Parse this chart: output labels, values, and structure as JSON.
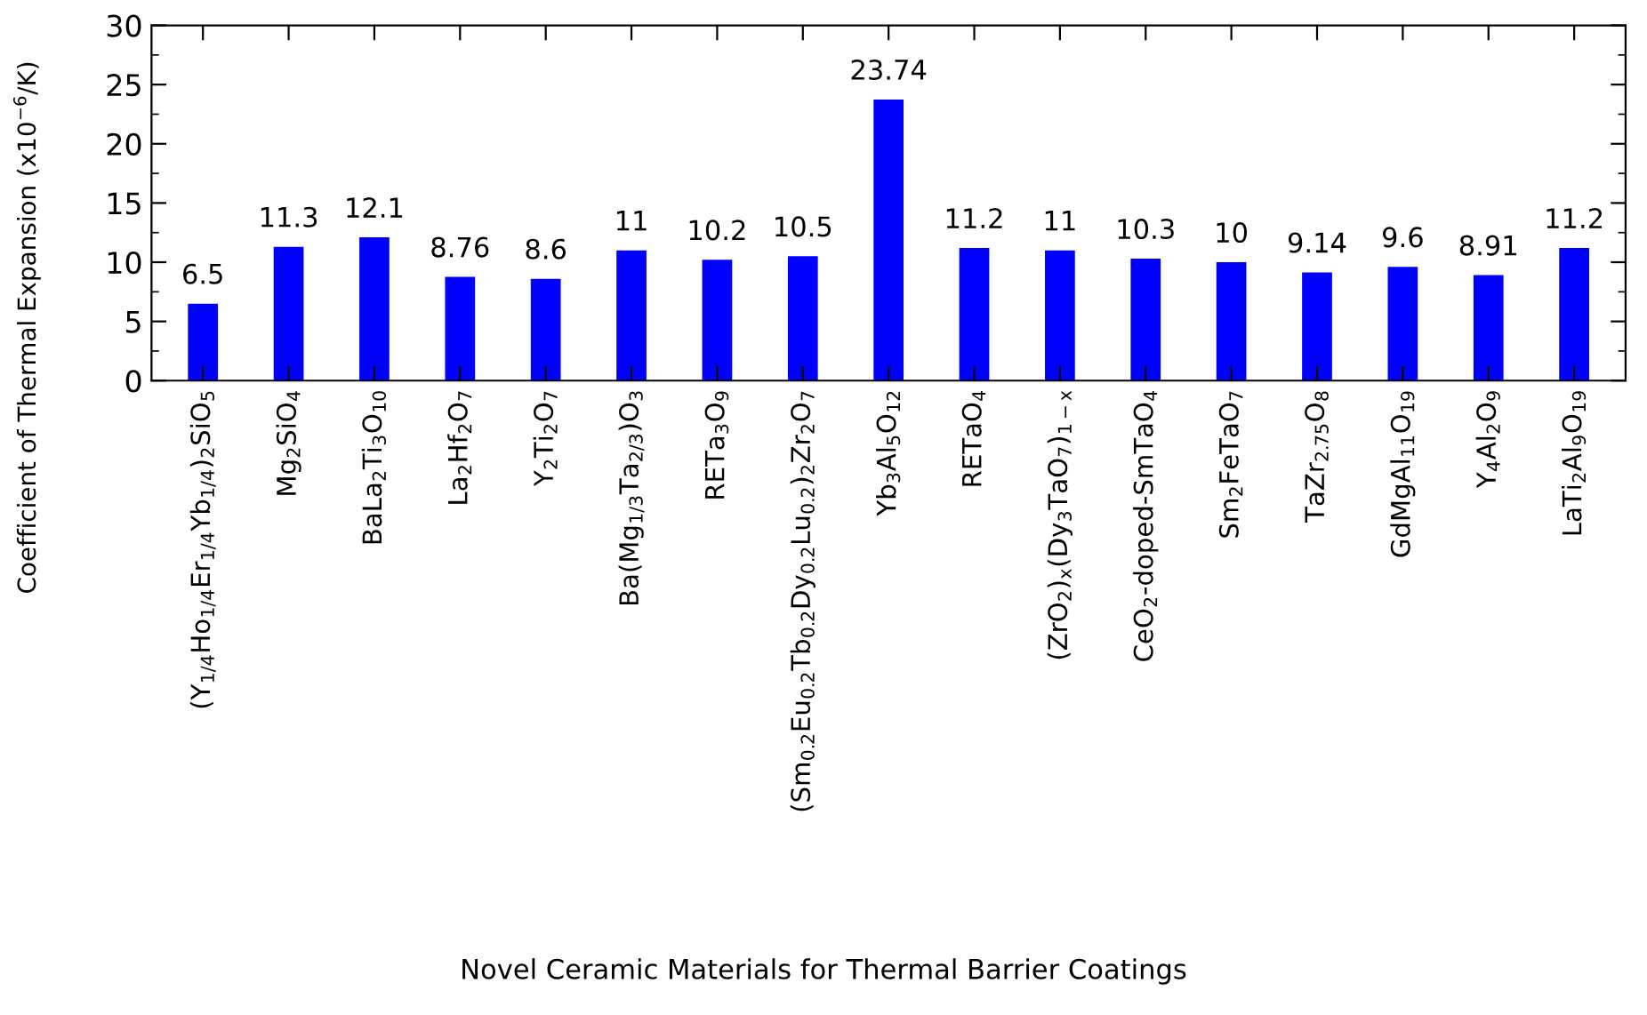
{
  "chart_data": {
    "type": "bar",
    "annotations": [
      "Novel Ceramic Materials for Thermal Barrier Coatings"
    ],
    "ylabel": "Coefficient of Thermal Expansion (x10$^{−6}$/K)",
    "categories": [
      "(Y$_{1/4}$Ho$_{1/4}$Er$_{1/4}$Yb$_{1/4}$)$_{2}$SiO$_{5}$",
      "Mg$_{2}$SiO$_{4}$",
      "BaLa$_{2}$Ti$_{3}$O$_{10}$",
      "La$_{2}$Hf$_{2}$O$_{7}$",
      "Y$_{2}$Ti$_{2}$O$_{7}$",
      "Ba(Mg$_{1/3}$Ta$_{2/3}$)O$_{3}$",
      "RETa$_{3}$O$_{9}$",
      "(Sm$_{0.2}$Eu$_{0.2}$Tb$_{0.2}$Dy$_{0.2}$Lu$_{0.2}$)$_{2}$Zr$_{2}$O$_{7}$",
      "Yb$_{3}$Al$_{5}$O$_{12}$",
      "RETaO$_{4}$",
      "(ZrO$_{2}$)$_{x}$(Dy$_{3}$TaO$_{7}$)$_{1−x}$",
      "CeO$_{2}$-doped-SmTaO$_{4}$",
      "Sm$_{2}$FeTaO$_{7}$",
      "TaZr$_{2.75}$O$_{8}$",
      "GdMgAl$_{11}$O$_{19}$",
      "Y$_{4}$Al$_{2}$O$_{9}$",
      "LaTi$_{2}$Al$_{9}$O$_{19}$"
    ],
    "values": [
      6.5,
      11.3,
      12.1,
      8.76,
      8.6,
      11,
      10.2,
      10.5,
      23.74,
      11.2,
      11,
      10.3,
      10,
      9.14,
      9.6,
      8.91,
      11.2
    ],
    "color": "#0000ff",
    "data_labels": true,
    "ylim": [
      0,
      30
    ],
    "yticks": [
      0,
      5,
      10,
      15,
      20,
      25,
      30
    ],
    "grid": false,
    "legend": false
  }
}
